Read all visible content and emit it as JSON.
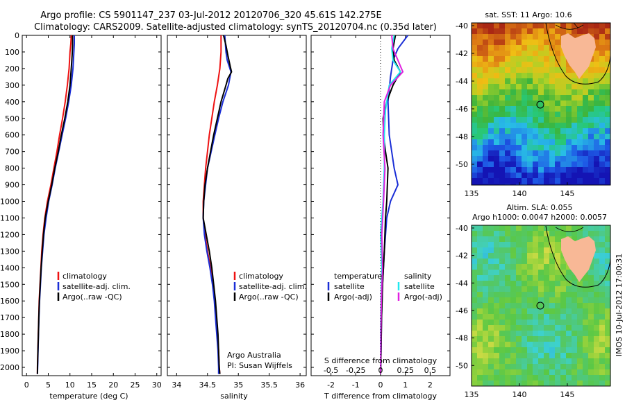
{
  "title_line1": "Argo profile: CS 5901147_237 03-Jul-2012 20120706_320 45.61S 142.275E",
  "title_line2": "Climatology: CARS2009. Satellite-adjusted climatology: synTS_20120704.nc (0.35d later)",
  "side_stamp": "IMOS 10-Jul-2012 17:00:31",
  "colors": {
    "climatology": "#ee1111",
    "satellite": "#1a2ed6",
    "argo": "#000000",
    "salinity_satellite": "#22e8f0",
    "salinity_argo": "#e020e0",
    "land": "#f8b896",
    "marker": "#000000"
  },
  "chart_data": [
    {
      "id": "temperature",
      "type": "line",
      "xlabel": "temperature (deg C)",
      "ylim": [
        2050,
        0
      ],
      "xlim": [
        -1,
        31
      ],
      "xticks": [
        0,
        5,
        10,
        15,
        20,
        25,
        30
      ],
      "yticks": [
        0,
        100,
        200,
        300,
        400,
        500,
        600,
        700,
        800,
        900,
        1000,
        1100,
        1200,
        1300,
        1400,
        1500,
        1600,
        1700,
        1800,
        1900,
        2000
      ],
      "legend": [
        "climatology",
        "satellite-adj. clim.",
        "Argo(..raw -QC)"
      ],
      "series": [
        {
          "name": "climatology",
          "color": "#ee1111",
          "points": [
            [
              10.3,
              0
            ],
            [
              10.2,
              50
            ],
            [
              10.0,
              100
            ],
            [
              9.8,
              200
            ],
            [
              9.4,
              300
            ],
            [
              8.9,
              400
            ],
            [
              8.3,
              500
            ],
            [
              7.6,
              600
            ],
            [
              7.0,
              700
            ],
            [
              6.3,
              800
            ],
            [
              5.6,
              900
            ],
            [
              4.8,
              1000
            ],
            [
              4.2,
              1100
            ],
            [
              3.8,
              1200
            ],
            [
              3.5,
              1300
            ],
            [
              3.3,
              1400
            ],
            [
              3.1,
              1500
            ],
            [
              2.9,
              1600
            ],
            [
              2.8,
              1700
            ],
            [
              2.7,
              1800
            ],
            [
              2.6,
              1900
            ],
            [
              2.5,
              2000
            ],
            [
              2.5,
              2040
            ]
          ]
        },
        {
          "name": "satellite-adj. clim.",
          "color": "#1a2ed6",
          "points": [
            [
              11.0,
              0
            ],
            [
              11.0,
              50
            ],
            [
              10.9,
              100
            ],
            [
              10.7,
              200
            ],
            [
              10.3,
              300
            ],
            [
              9.7,
              400
            ],
            [
              9.0,
              500
            ],
            [
              8.2,
              600
            ],
            [
              7.4,
              700
            ],
            [
              6.6,
              800
            ],
            [
              5.9,
              900
            ],
            [
              5.1,
              1000
            ],
            [
              4.5,
              1100
            ],
            [
              4.0,
              1200
            ],
            [
              3.7,
              1300
            ],
            [
              3.4,
              1400
            ],
            [
              3.2,
              1500
            ],
            [
              3.0,
              1600
            ],
            [
              2.85,
              1700
            ],
            [
              2.75,
              1800
            ],
            [
              2.65,
              1900
            ],
            [
              2.55,
              2000
            ],
            [
              2.5,
              2040
            ]
          ]
        },
        {
          "name": "Argo(..raw -QC)",
          "color": "#000000",
          "points": [
            [
              10.6,
              0
            ],
            [
              10.6,
              60
            ],
            [
              10.5,
              120
            ],
            [
              10.3,
              200
            ],
            [
              10.0,
              300
            ],
            [
              9.5,
              400
            ],
            [
              8.8,
              500
            ],
            [
              8.0,
              600
            ],
            [
              7.3,
              700
            ],
            [
              6.5,
              800
            ],
            [
              5.8,
              900
            ],
            [
              5.0,
              1000
            ],
            [
              4.3,
              1100
            ],
            [
              3.9,
              1200
            ],
            [
              3.6,
              1300
            ],
            [
              3.35,
              1400
            ],
            [
              3.15,
              1500
            ],
            [
              2.95,
              1600
            ],
            [
              2.82,
              1700
            ],
            [
              2.72,
              1800
            ],
            [
              2.62,
              1900
            ],
            [
              2.52,
              2000
            ],
            [
              2.5,
              2040
            ]
          ]
        }
      ]
    },
    {
      "id": "salinity",
      "type": "line",
      "xlabel": "salinity",
      "ylim": [
        2050,
        0
      ],
      "xlim": [
        33.85,
        36.1
      ],
      "xticks": [
        34,
        34.5,
        35,
        35.5,
        36
      ],
      "legend": [
        "climatology",
        "satellite-adj. clim.",
        "Argo(..raw -QC)"
      ],
      "annotation": [
        "Argo Australia",
        "PI: Susan Wijffels"
      ],
      "series": [
        {
          "name": "climatology",
          "color": "#ee1111",
          "points": [
            [
              34.72,
              0
            ],
            [
              34.72,
              100
            ],
            [
              34.7,
              200
            ],
            [
              34.66,
              300
            ],
            [
              34.61,
              400
            ],
            [
              34.57,
              500
            ],
            [
              34.53,
              600
            ],
            [
              34.5,
              700
            ],
            [
              34.47,
              800
            ],
            [
              34.45,
              900
            ],
            [
              34.43,
              1000
            ],
            [
              34.43,
              1100
            ],
            [
              34.46,
              1200
            ],
            [
              34.5,
              1300
            ],
            [
              34.55,
              1400
            ],
            [
              34.59,
              1500
            ],
            [
              34.62,
              1600
            ],
            [
              34.64,
              1700
            ],
            [
              34.66,
              1800
            ],
            [
              34.68,
              1900
            ],
            [
              34.69,
              2000
            ],
            [
              34.7,
              2040
            ]
          ]
        },
        {
          "name": "satellite-adj. clim.",
          "color": "#1a2ed6",
          "points": [
            [
              34.78,
              0
            ],
            [
              34.8,
              100
            ],
            [
              34.82,
              150
            ],
            [
              34.88,
              220
            ],
            [
              34.84,
              300
            ],
            [
              34.75,
              400
            ],
            [
              34.68,
              500
            ],
            [
              34.62,
              600
            ],
            [
              34.56,
              700
            ],
            [
              34.5,
              800
            ],
            [
              34.47,
              900
            ],
            [
              34.44,
              1000
            ],
            [
              34.43,
              1100
            ],
            [
              34.45,
              1200
            ],
            [
              34.49,
              1300
            ],
            [
              34.54,
              1400
            ],
            [
              34.58,
              1500
            ],
            [
              34.61,
              1600
            ],
            [
              34.63,
              1700
            ],
            [
              34.65,
              1800
            ],
            [
              34.67,
              1900
            ],
            [
              34.68,
              2000
            ],
            [
              34.68,
              2040
            ]
          ]
        },
        {
          "name": "Argo(..raw -QC)",
          "color": "#000000",
          "points": [
            [
              34.76,
              0
            ],
            [
              34.8,
              60
            ],
            [
              34.83,
              120
            ],
            [
              34.87,
              190
            ],
            [
              34.89,
              220
            ],
            [
              34.83,
              260
            ],
            [
              34.8,
              300
            ],
            [
              34.76,
              350
            ],
            [
              34.72,
              400
            ],
            [
              34.66,
              500
            ],
            [
              34.6,
              600
            ],
            [
              34.55,
              700
            ],
            [
              34.5,
              800
            ],
            [
              34.46,
              900
            ],
            [
              34.44,
              1000
            ],
            [
              34.43,
              1100
            ],
            [
              34.48,
              1200
            ],
            [
              34.53,
              1300
            ],
            [
              34.57,
              1400
            ],
            [
              34.6,
              1500
            ],
            [
              34.63,
              1600
            ],
            [
              34.65,
              1700
            ],
            [
              34.67,
              1800
            ],
            [
              34.68,
              1900
            ],
            [
              34.69,
              2000
            ],
            [
              34.7,
              2040
            ]
          ]
        }
      ]
    },
    {
      "id": "difference",
      "type": "line",
      "xlabel": "T difference from climatology",
      "xlabel_top": "S difference from climatology",
      "ylim": [
        2050,
        0
      ],
      "xlim": [
        -2.8,
        2.8
      ],
      "xticks": [
        -2,
        -1,
        0,
        1,
        2
      ],
      "top_ticks": [
        "-0.5",
        "-0.25",
        "0",
        "0.25",
        "0.5"
      ],
      "legend_headers": [
        "temperature",
        "salinity"
      ],
      "legend": [
        "satellite",
        "Argo(-adj)",
        "satellite",
        "Argo(-adj)"
      ],
      "series": [
        {
          "name": "satellite",
          "color": "#1a2ed6",
          "points": [
            [
              1.1,
              0
            ],
            [
              0.7,
              80
            ],
            [
              0.5,
              150
            ],
            [
              0.4,
              250
            ],
            [
              0.3,
              400
            ],
            [
              0.35,
              600
            ],
            [
              0.55,
              800
            ],
            [
              0.7,
              900
            ],
            [
              0.4,
              1000
            ],
            [
              0.25,
              1100
            ],
            [
              0.15,
              1300
            ],
            [
              0.08,
              1500
            ],
            [
              0.04,
              1700
            ],
            [
              0.02,
              1900
            ],
            [
              0.0,
              2040
            ]
          ]
        },
        {
          "name": "Argo(-adj)",
          "color": "#000000",
          "points": [
            [
              0.6,
              0
            ],
            [
              0.5,
              80
            ],
            [
              0.55,
              150
            ],
            [
              0.8,
              220
            ],
            [
              0.5,
              300
            ],
            [
              0.25,
              400
            ],
            [
              0.1,
              500
            ],
            [
              0.12,
              600
            ],
            [
              0.2,
              700
            ],
            [
              0.3,
              800
            ],
            [
              0.25,
              1000
            ],
            [
              0.2,
              1100
            ],
            [
              0.15,
              1300
            ],
            [
              0.08,
              1500
            ],
            [
              0.04,
              1700
            ],
            [
              0.02,
              1900
            ],
            [
              0.0,
              2040
            ]
          ]
        },
        {
          "name": "satellite",
          "color": "#22e8f0",
          "points": [
            [
              0.55,
              0
            ],
            [
              0.45,
              80
            ],
            [
              0.5,
              150
            ],
            [
              0.8,
              220
            ],
            [
              0.35,
              300
            ],
            [
              0.2,
              450
            ],
            [
              0.15,
              600
            ],
            [
              0.15,
              800
            ],
            [
              0.1,
              1000
            ],
            [
              0.0,
              1200
            ],
            [
              0.05,
              1400
            ],
            [
              0.02,
              1600
            ],
            [
              0.0,
              1800
            ],
            [
              0.0,
              2040
            ]
          ]
        },
        {
          "name": "Argo(-adj)",
          "color": "#e020e0",
          "points": [
            [
              0.45,
              0
            ],
            [
              0.5,
              80
            ],
            [
              0.7,
              150
            ],
            [
              0.9,
              220
            ],
            [
              0.4,
              300
            ],
            [
              0.15,
              400
            ],
            [
              0.1,
              600
            ],
            [
              0.18,
              800
            ],
            [
              0.12,
              1000
            ],
            [
              0.05,
              1200
            ],
            [
              0.08,
              1400
            ],
            [
              0.03,
              1600
            ],
            [
              0.01,
              1800
            ],
            [
              0.0,
              2040
            ]
          ]
        }
      ]
    },
    {
      "id": "sst_map",
      "type": "heatmap",
      "title": "sat. SST: 11  Argo: 10.6",
      "xticks": [
        135,
        140,
        145
      ],
      "yticks": [
        -40,
        -42,
        -44,
        -46,
        -48,
        -50
      ],
      "xlim": [
        135,
        149.5
      ],
      "ylim": [
        -51.5,
        -39.8
      ],
      "float_position": [
        142.275,
        -45.61
      ]
    },
    {
      "id": "sla_map",
      "type": "heatmap",
      "title_line1": "Altim. SLA: 0.055",
      "title_line2": "Argo h1000: 0.0047  h2000: 0.0057",
      "xticks": [
        135,
        140,
        145
      ],
      "yticks": [
        -40,
        -42,
        -44,
        -46,
        -48,
        -50
      ],
      "xlim": [
        135,
        149.5
      ],
      "ylim": [
        -51.5,
        -39.8
      ],
      "float_position": [
        142.275,
        -45.61
      ]
    }
  ]
}
